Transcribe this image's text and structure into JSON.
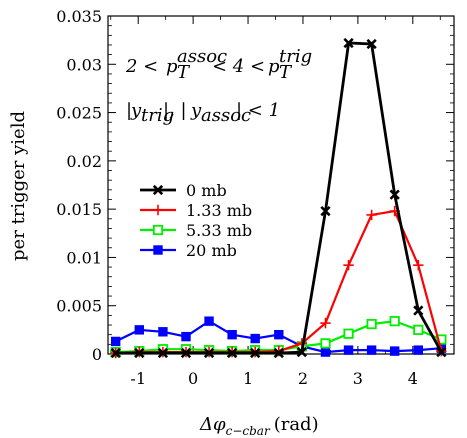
{
  "chart_data": {
    "type": "line",
    "xlabel": "Δφ",
    "xlabel_sub": "c−cbar",
    "xlabel_unit": "(rad)",
    "ylabel": "per trigger yield",
    "xlim": [
      -1.55,
      4.75
    ],
    "ylim": [
      0,
      0.035
    ],
    "grid": false,
    "legend_position": "middle-left",
    "x_ticks": [
      -1,
      0,
      1,
      2,
      3,
      4
    ],
    "x_tick_labels": [
      "-1",
      "0",
      "1",
      "2",
      "3",
      "4"
    ],
    "y_ticks": [
      0,
      0.005,
      0.01,
      0.015,
      0.02,
      0.025,
      0.03,
      0.035
    ],
    "y_tick_labels": [
      "0",
      "0.005",
      "0.01",
      "0.015",
      "0.02",
      "0.025",
      "0.03",
      "0.035"
    ],
    "annotations": [
      {
        "text": "2 < p_T^{assoc} < 4 < p_T^{trig}"
      },
      {
        "text": "|y_{trig}|, |y_{assoc}| < 1"
      }
    ],
    "series": [
      {
        "name": "0 mb",
        "color": "#000000",
        "marker": "x",
        "x": [
          -1.41,
          -0.98,
          -0.55,
          -0.13,
          0.29,
          0.71,
          1.13,
          1.56,
          1.98,
          2.41,
          2.83,
          3.25,
          3.67,
          4.1,
          4.52
        ],
        "y": [
          0.0001,
          0.0001,
          0.0001,
          0.0001,
          0.0001,
          0.0001,
          0.0001,
          0.0001,
          0.0002,
          0.0148,
          0.0322,
          0.0321,
          0.0165,
          0.0045,
          0.0002
        ]
      },
      {
        "name": "1.33 mb",
        "color": "#ff0000",
        "marker": "plus",
        "x": [
          -1.41,
          -0.98,
          -0.55,
          -0.13,
          0.29,
          0.71,
          1.13,
          1.56,
          1.98,
          2.41,
          2.83,
          3.25,
          3.67,
          4.1,
          4.52
        ],
        "y": [
          0.0001,
          0.0002,
          0.0002,
          0.0002,
          0.0002,
          0.0002,
          0.0002,
          0.0003,
          0.0011,
          0.0032,
          0.0092,
          0.0144,
          0.0148,
          0.0092,
          0.0003
        ]
      },
      {
        "name": "5.33 mb",
        "color": "#00ee00",
        "marker": "open-square",
        "x": [
          -1.41,
          -0.98,
          -0.55,
          -0.13,
          0.29,
          0.71,
          1.13,
          1.56,
          1.98,
          2.41,
          2.83,
          3.25,
          3.67,
          4.1,
          4.52
        ],
        "y": [
          0.0002,
          0.0003,
          0.0005,
          0.0005,
          0.0004,
          0.0003,
          0.0004,
          0.0004,
          0.0008,
          0.0011,
          0.0021,
          0.0031,
          0.0034,
          0.0025,
          0.0015
        ]
      },
      {
        "name": "20 mb",
        "color": "#0000ff",
        "marker": "filled-square",
        "x": [
          -1.41,
          -0.98,
          -0.55,
          -0.13,
          0.29,
          0.71,
          1.13,
          1.56,
          1.98,
          2.41,
          2.83,
          3.25,
          3.67,
          4.1,
          4.52
        ],
        "y": [
          0.0013,
          0.0025,
          0.0023,
          0.0018,
          0.0034,
          0.002,
          0.0016,
          0.002,
          0.0008,
          0.0002,
          0.0004,
          0.0004,
          0.0003,
          0.0004,
          0.0006
        ]
      }
    ]
  }
}
